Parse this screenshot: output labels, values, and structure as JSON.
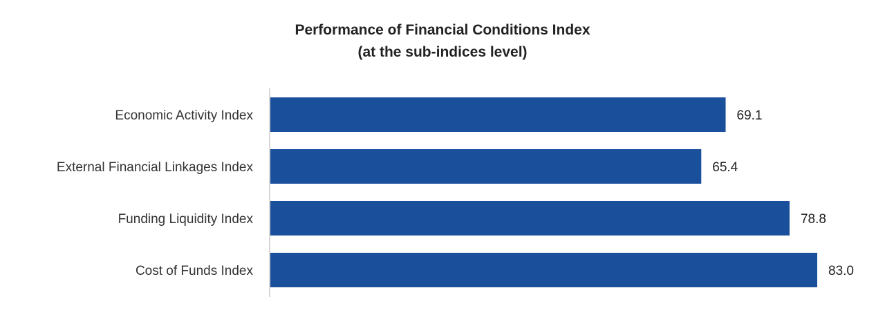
{
  "chart_data": {
    "type": "bar",
    "orientation": "horizontal",
    "title": [
      "Performance of Financial  Conditions Index",
      "(at the sub-indices  level)"
    ],
    "categories": [
      "Economic Activity Index",
      "External Financial Linkages Index",
      "Funding Liquidity Index",
      "Cost of Funds Index"
    ],
    "values": [
      69.1,
      65.4,
      78.8,
      83.0
    ],
    "value_labels": [
      "69.1",
      "65.4",
      "78.8",
      "83.0"
    ],
    "xlim": [
      0,
      83.0
    ],
    "bar_color": "#1A4F9C",
    "axis_color": "#C8C8C8",
    "grid": false,
    "legend": "none"
  }
}
